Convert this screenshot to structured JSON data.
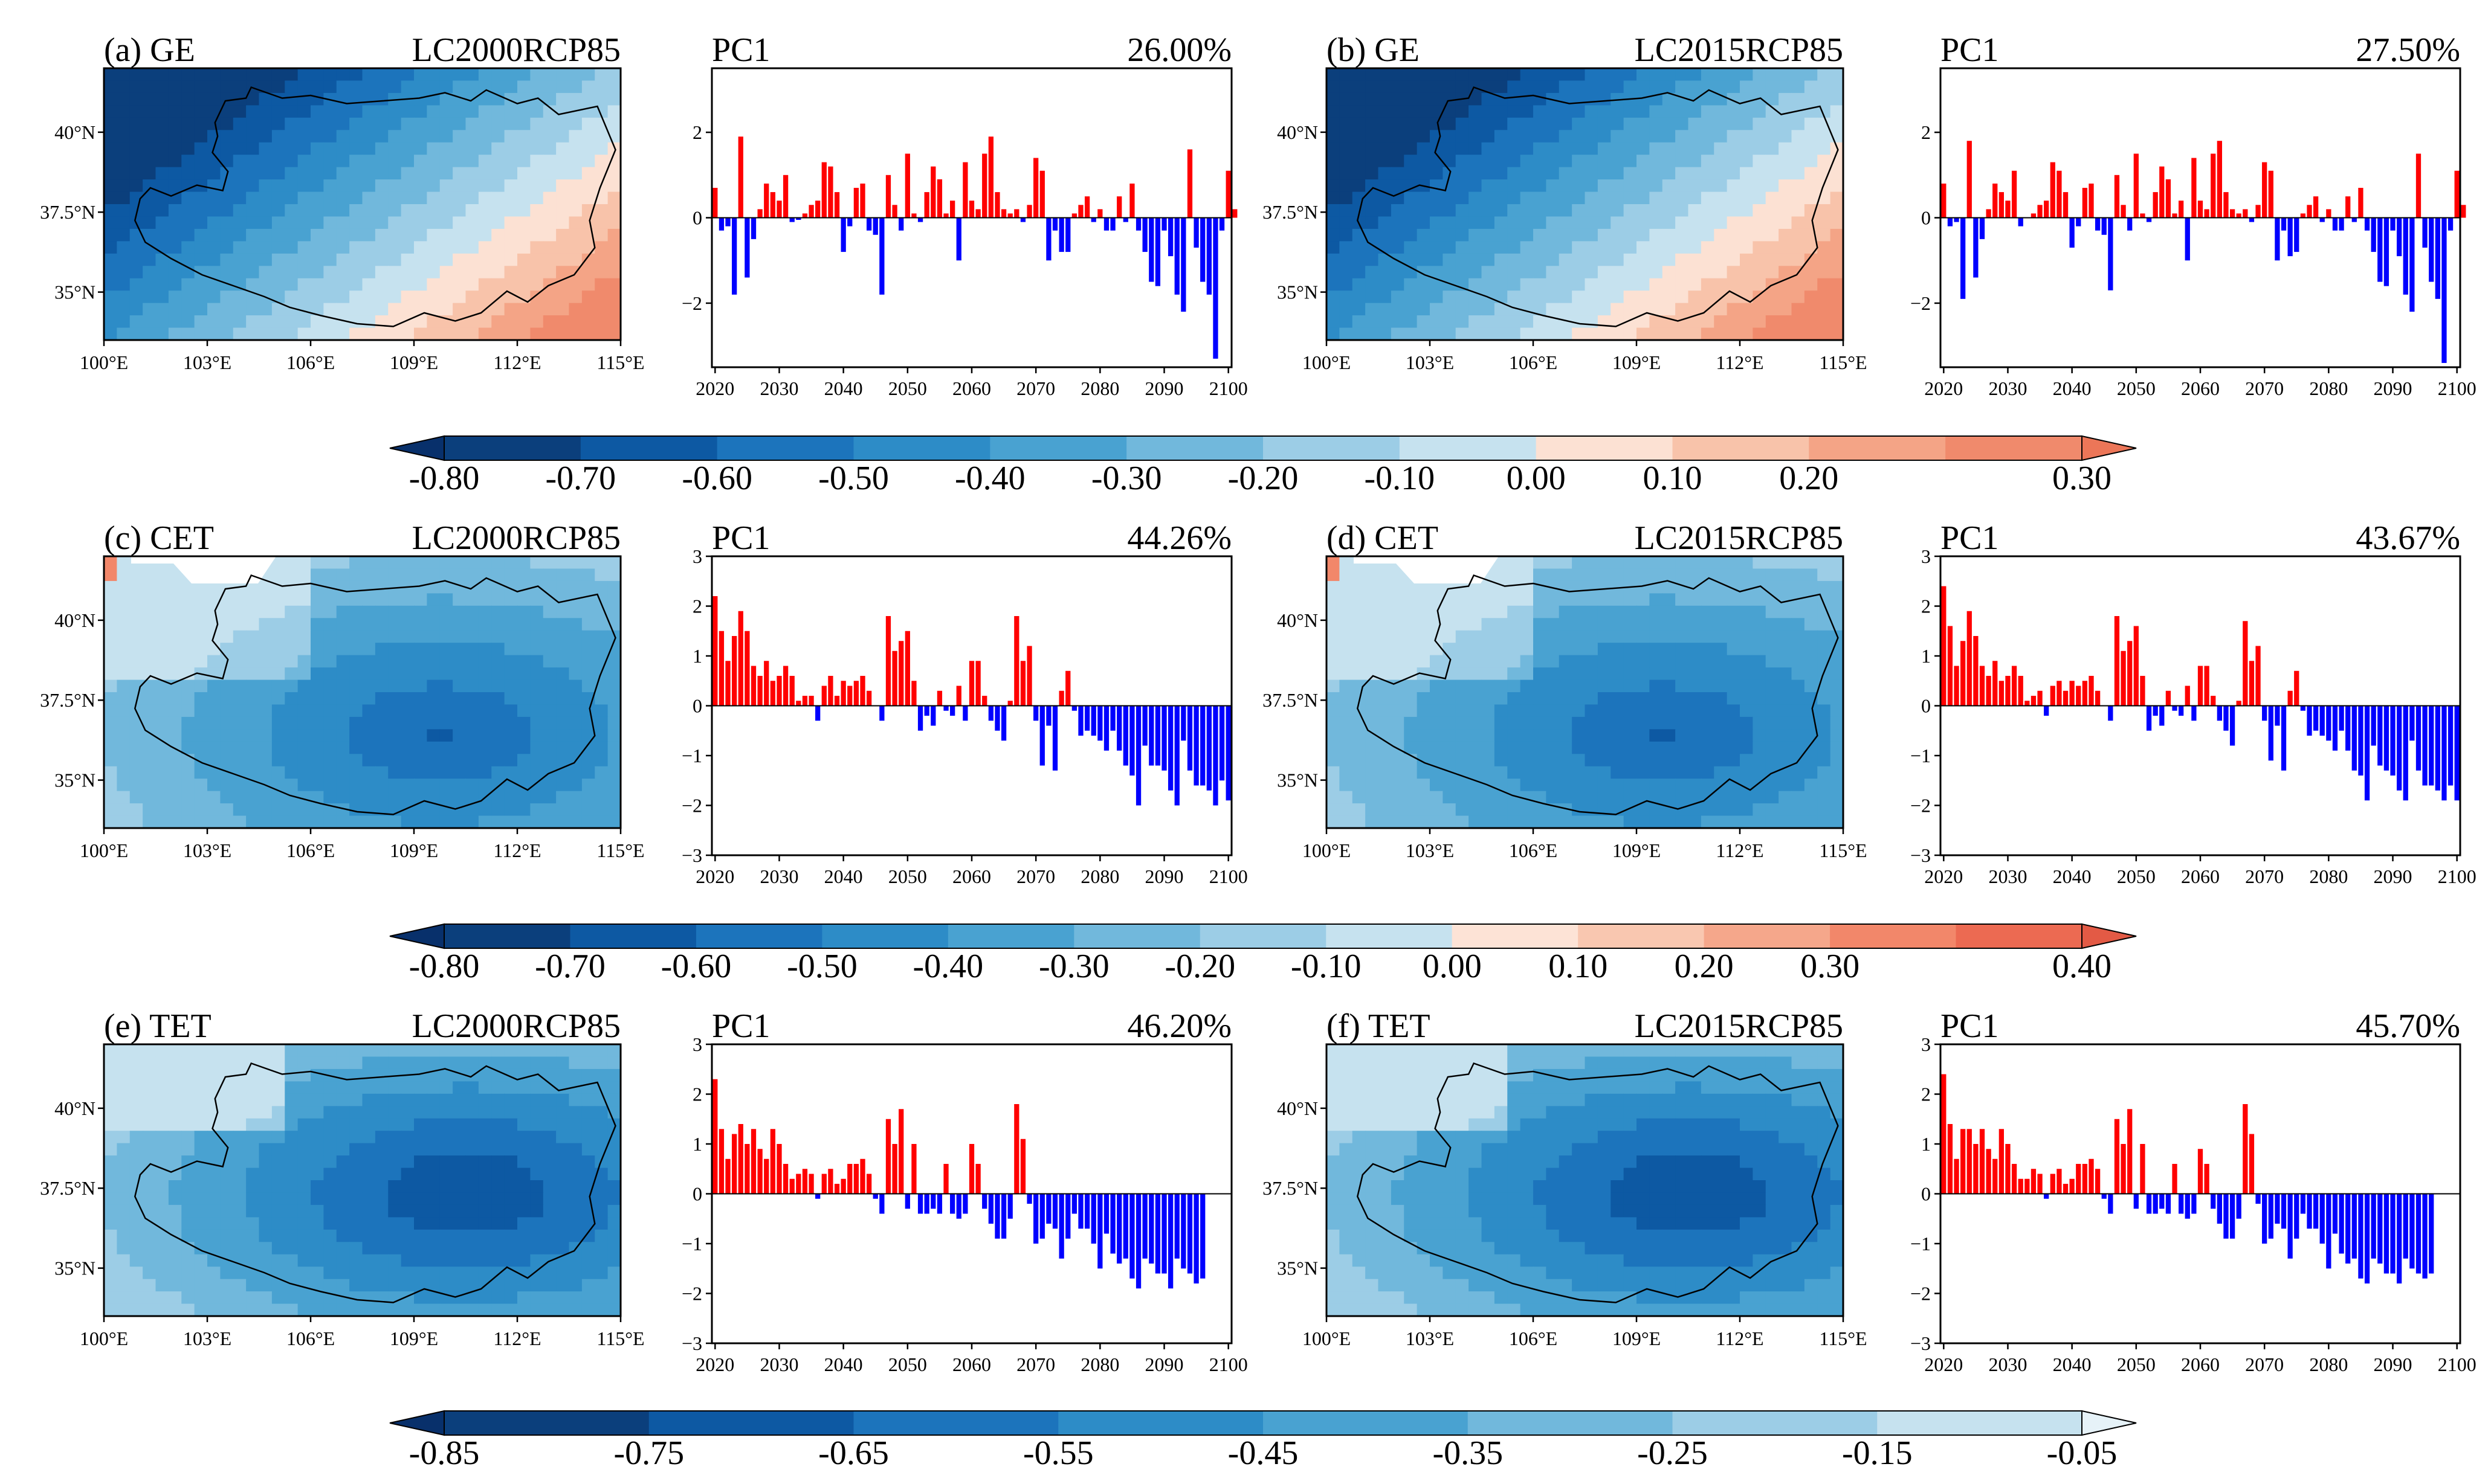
{
  "figure": {
    "description_label": "EOF first-mode spatial patterns and PC1 time series"
  },
  "rows": [
    {
      "variable": "GE",
      "panels": [
        {
          "letter": "(a)",
          "variable": "GE",
          "scenario": "LC2000RCP85",
          "pc_label": "PC1",
          "variance": "26.00%",
          "style": "ge"
        },
        {
          "letter": "(b)",
          "variable": "GE",
          "scenario": "LC2015RCP85",
          "pc_label": "PC1",
          "variance": "27.50%",
          "style": "ge"
        }
      ],
      "colorbar": {
        "labels": [
          "-0.80",
          "-0.70",
          "-0.60",
          "-0.50",
          "-0.40",
          "-0.30",
          "-0.20",
          "-0.10",
          "0.00",
          "0.10",
          "0.20",
          "0.30"
        ],
        "colors": [
          "#0b3f7c",
          "#0d59a3",
          "#1c74bc",
          "#2d8cc7",
          "#49a2d1",
          "#71b8dc",
          "#9ccde6",
          "#c6e2ef",
          "#fce1d3",
          "#f8c3aa",
          "#f4a486",
          "#f08a6c"
        ],
        "arrow_left": "#08306b",
        "arrow_right": "#ec7658"
      },
      "pc_axis": {
        "ylim": [
          -3.5,
          3.5
        ],
        "yticks": [
          -2,
          0,
          2
        ],
        "ytick_labels": [
          "−2",
          "0",
          "2"
        ]
      }
    },
    {
      "variable": "CET",
      "panels": [
        {
          "letter": "(c)",
          "variable": "CET",
          "scenario": "LC2000RCP85",
          "pc_label": "PC1",
          "variance": "44.26%",
          "style": "cet"
        },
        {
          "letter": "(d)",
          "variable": "CET",
          "scenario": "LC2015RCP85",
          "pc_label": "PC1",
          "variance": "43.67%",
          "style": "cet"
        }
      ],
      "colorbar": {
        "labels": [
          "-0.80",
          "-0.70",
          "-0.60",
          "-0.50",
          "-0.40",
          "-0.30",
          "-0.20",
          "-0.10",
          "0.00",
          "0.10",
          "0.20",
          "0.30",
          "0.40"
        ],
        "colors": [
          "#0b3f7c",
          "#0d59a3",
          "#1c74bc",
          "#2d8cc7",
          "#49a2d1",
          "#71b8dc",
          "#9ccde6",
          "#c6e2ef",
          "#fde3d6",
          "#f9c7b0",
          "#f5a78b",
          "#f2876a",
          "#ec6a52"
        ],
        "arrow_left": "#08306b",
        "arrow_right": "#e35a45"
      },
      "pc_axis": {
        "ylim": [
          -3,
          3
        ],
        "yticks": [
          -3,
          -2,
          -1,
          0,
          1,
          2,
          3
        ],
        "ytick_labels": [
          "−3",
          "−2",
          "−1",
          "0",
          "1",
          "2",
          "3"
        ]
      }
    },
    {
      "variable": "TET",
      "panels": [
        {
          "letter": "(e)",
          "variable": "TET",
          "scenario": "LC2000RCP85",
          "pc_label": "PC1",
          "variance": "46.20%",
          "style": "tet"
        },
        {
          "letter": "(f)",
          "variable": "TET",
          "scenario": "LC2015RCP85",
          "pc_label": "PC1",
          "variance": "45.70%",
          "style": "tet"
        }
      ],
      "colorbar": {
        "labels": [
          "-0.85",
          "-0.75",
          "-0.65",
          "-0.55",
          "-0.45",
          "-0.35",
          "-0.25",
          "-0.15",
          "-0.05"
        ],
        "colors": [
          "#0b3f7c",
          "#0d59a3",
          "#1c74bc",
          "#2d8cc7",
          "#49a2d1",
          "#71b8dc",
          "#9ccde6",
          "#c6e2ef"
        ],
        "arrow_left": "#08306b",
        "arrow_right": "#e6f2f8"
      },
      "pc_axis": {
        "ylim": [
          -3,
          3
        ],
        "yticks": [
          -3,
          -2,
          -1,
          0,
          1,
          2,
          3
        ],
        "ytick_labels": [
          "−3",
          "−2",
          "−1",
          "0",
          "1",
          "2",
          "3"
        ]
      }
    }
  ],
  "map_axes": {
    "xtick_labels": [
      "100°E",
      "103°E",
      "106°E",
      "109°E",
      "112°E",
      "115°E"
    ],
    "xtick_values": [
      100,
      103,
      106,
      109,
      112,
      115
    ],
    "ytick_labels": [
      "35°N",
      "37.5°N",
      "40°N"
    ],
    "ytick_values": [
      35,
      37.5,
      40
    ],
    "lon_range": [
      100,
      115
    ],
    "lat_range": [
      33.5,
      42
    ]
  },
  "pc_xaxis": {
    "xtick_values": [
      2020,
      2030,
      2040,
      2050,
      2060,
      2070,
      2080,
      2090,
      2100
    ],
    "xtick_labels": [
      "2020",
      "2030",
      "2040",
      "2050",
      "2060",
      "2070",
      "2080",
      "2090",
      "2100"
    ],
    "xlim": [
      2019.5,
      2100.5
    ]
  },
  "chart_data": [
    {
      "type": "bar",
      "title": "(a) GE LC2000RCP85 PC1 26.00%",
      "x_start": 2020,
      "ylim": [
        -3.5,
        3.5
      ],
      "values": [
        0.7,
        -0.3,
        -0.2,
        -1.8,
        1.9,
        -1.4,
        -0.5,
        0.2,
        0.8,
        0.6,
        0.4,
        1.0,
        -0.1,
        -0.05,
        0.1,
        0.3,
        0.4,
        1.3,
        1.2,
        0.6,
        -0.8,
        -0.2,
        0.7,
        0.8,
        -0.3,
        -0.4,
        -1.8,
        1.0,
        0.3,
        -0.3,
        1.5,
        0.1,
        -0.1,
        0.6,
        1.2,
        0.9,
        0.1,
        0.4,
        -1.0,
        1.3,
        0.4,
        0.2,
        1.5,
        1.9,
        0.6,
        0.2,
        0.1,
        0.2,
        -0.1,
        0.3,
        1.4,
        1.1,
        -1.0,
        -0.3,
        -0.8,
        -0.8,
        0.1,
        0.3,
        0.5,
        -0.1,
        0.2,
        -0.3,
        -0.3,
        0.5,
        -0.1,
        0.8,
        -0.3,
        -0.8,
        -1.5,
        -1.6,
        -0.3,
        -0.9,
        -1.8,
        -2.2,
        1.6,
        -0.7,
        -1.5,
        -1.8,
        -3.3,
        -0.3,
        1.1,
        0.2
      ],
      "positive_color": "#ff0000",
      "negative_color": "#0000ff"
    },
    {
      "type": "bar",
      "title": "(b) GE LC2015RCP85 PC1 27.50%",
      "x_start": 2020,
      "ylim": [
        -3.5,
        3.5
      ],
      "values": [
        0.8,
        -0.2,
        -0.1,
        -1.9,
        1.8,
        -1.4,
        -0.5,
        0.2,
        0.8,
        0.6,
        0.4,
        1.1,
        -0.2,
        0.0,
        0.1,
        0.3,
        0.4,
        1.3,
        1.1,
        0.6,
        -0.7,
        -0.2,
        0.7,
        0.8,
        -0.3,
        -0.4,
        -1.7,
        1.0,
        0.3,
        -0.3,
        1.5,
        0.1,
        -0.1,
        0.6,
        1.2,
        0.9,
        0.1,
        0.4,
        -1.0,
        1.4,
        0.4,
        0.2,
        1.5,
        1.8,
        0.6,
        0.2,
        0.1,
        0.2,
        -0.1,
        0.3,
        1.3,
        1.1,
        -1.0,
        -0.3,
        -0.9,
        -0.8,
        0.1,
        0.3,
        0.5,
        -0.1,
        0.2,
        -0.3,
        -0.3,
        0.5,
        -0.1,
        0.7,
        -0.3,
        -0.8,
        -1.5,
        -1.6,
        -0.3,
        -0.9,
        -1.8,
        -2.2,
        1.5,
        -0.7,
        -1.5,
        -1.9,
        -3.4,
        -0.3,
        1.1,
        0.3
      ],
      "positive_color": "#ff0000",
      "negative_color": "#0000ff"
    },
    {
      "type": "bar",
      "title": "(c) CET LC2000RCP85 PC1 44.26%",
      "x_start": 2020,
      "ylim": [
        -3,
        3
      ],
      "values": [
        2.2,
        1.5,
        0.9,
        1.4,
        1.9,
        1.5,
        0.8,
        0.6,
        0.9,
        0.5,
        0.6,
        0.8,
        0.6,
        0.1,
        0.2,
        0.2,
        -0.3,
        0.4,
        0.6,
        0.2,
        0.5,
        0.4,
        0.5,
        0.6,
        0.3,
        0.0,
        -0.3,
        1.8,
        1.1,
        1.3,
        1.5,
        0.5,
        -0.5,
        -0.2,
        -0.4,
        0.3,
        -0.1,
        -0.2,
        0.4,
        -0.3,
        0.9,
        0.9,
        0.2,
        -0.3,
        -0.5,
        -0.7,
        0.1,
        1.8,
        0.9,
        1.2,
        -0.3,
        -1.2,
        -0.4,
        -1.3,
        0.3,
        0.7,
        -0.1,
        -0.6,
        -0.5,
        -0.6,
        -0.7,
        -0.9,
        -0.5,
        -0.9,
        -1.2,
        -1.4,
        -2.0,
        -0.8,
        -1.2,
        -1.2,
        -1.3,
        -1.7,
        -2.0,
        -0.7,
        -1.3,
        -1.6,
        -1.6,
        -1.7,
        -2.0,
        -1.5,
        -1.9
      ],
      "positive_color": "#ff0000",
      "negative_color": "#0000ff"
    },
    {
      "type": "bar",
      "title": "(d) CET LC2015RCP85 PC1 43.67%",
      "x_start": 2020,
      "ylim": [
        -3,
        3
      ],
      "values": [
        2.4,
        1.6,
        0.8,
        1.3,
        1.9,
        1.4,
        0.8,
        0.6,
        0.9,
        0.5,
        0.6,
        0.8,
        0.6,
        0.1,
        0.2,
        0.3,
        -0.2,
        0.4,
        0.5,
        0.3,
        0.5,
        0.4,
        0.5,
        0.6,
        0.3,
        0.0,
        -0.3,
        1.8,
        1.1,
        1.3,
        1.6,
        0.6,
        -0.5,
        -0.2,
        -0.4,
        0.3,
        -0.1,
        -0.2,
        0.4,
        -0.3,
        0.8,
        0.8,
        0.2,
        -0.3,
        -0.5,
        -0.8,
        0.1,
        1.7,
        0.9,
        1.2,
        -0.3,
        -1.1,
        -0.4,
        -1.3,
        0.3,
        0.7,
        -0.1,
        -0.6,
        -0.5,
        -0.6,
        -0.7,
        -0.9,
        -0.5,
        -0.9,
        -1.3,
        -1.4,
        -1.9,
        -0.8,
        -1.2,
        -1.3,
        -1.4,
        -1.7,
        -1.9,
        -0.7,
        -1.3,
        -1.6,
        -1.6,
        -1.7,
        -1.9,
        -1.6,
        -1.9
      ],
      "positive_color": "#ff0000",
      "negative_color": "#0000ff"
    },
    {
      "type": "bar",
      "title": "(e) TET LC2000RCP85 PC1 46.20%",
      "x_start": 2020,
      "ylim": [
        -3,
        3
      ],
      "values": [
        2.3,
        1.3,
        0.7,
        1.2,
        1.4,
        1.0,
        1.3,
        0.9,
        0.7,
        1.3,
        1.0,
        0.6,
        0.3,
        0.4,
        0.5,
        0.4,
        -0.1,
        0.4,
        0.5,
        0.2,
        0.3,
        0.6,
        0.6,
        0.7,
        0.4,
        -0.1,
        -0.4,
        1.5,
        1.0,
        1.7,
        -0.3,
        1.0,
        -0.4,
        -0.4,
        -0.3,
        -0.4,
        0.6,
        -0.4,
        -0.5,
        -0.4,
        1.0,
        0.6,
        -0.3,
        -0.6,
        -0.9,
        -0.9,
        -0.5,
        1.8,
        1.1,
        -0.2,
        -1.0,
        -0.9,
        -0.6,
        -0.7,
        -1.3,
        -0.9,
        -0.4,
        -0.7,
        -0.7,
        -1.0,
        -1.5,
        -0.8,
        -1.2,
        -1.4,
        -1.3,
        -1.7,
        -1.9,
        -1.3,
        -1.4,
        -1.6,
        -1.6,
        -1.9,
        -1.3,
        -1.5,
        -1.6,
        -1.8,
        -1.7
      ],
      "positive_color": "#ff0000",
      "negative_color": "#0000ff"
    },
    {
      "type": "bar",
      "title": "(f) TET LC2015RCP85 PC1 45.70%",
      "x_start": 2020,
      "ylim": [
        -3,
        3
      ],
      "values": [
        2.4,
        1.4,
        0.7,
        1.3,
        1.3,
        1.0,
        1.3,
        0.9,
        0.7,
        1.3,
        1.0,
        0.6,
        0.3,
        0.3,
        0.5,
        0.4,
        -0.1,
        0.4,
        0.5,
        0.2,
        0.3,
        0.6,
        0.6,
        0.7,
        0.5,
        -0.1,
        -0.4,
        1.5,
        1.0,
        1.7,
        -0.3,
        1.0,
        -0.4,
        -0.4,
        -0.3,
        -0.4,
        0.6,
        -0.4,
        -0.5,
        -0.4,
        0.9,
        0.6,
        -0.3,
        -0.6,
        -0.9,
        -0.9,
        -0.5,
        1.8,
        1.2,
        -0.2,
        -1.0,
        -0.9,
        -0.6,
        -0.7,
        -1.3,
        -0.9,
        -0.4,
        -0.7,
        -0.7,
        -1.0,
        -1.5,
        -0.8,
        -1.2,
        -1.4,
        -1.3,
        -1.7,
        -1.8,
        -1.3,
        -1.4,
        -1.6,
        -1.6,
        -1.8,
        -1.3,
        -1.5,
        -1.6,
        -1.7,
        -1.6
      ],
      "positive_color": "#ff0000",
      "negative_color": "#0000ff"
    }
  ]
}
